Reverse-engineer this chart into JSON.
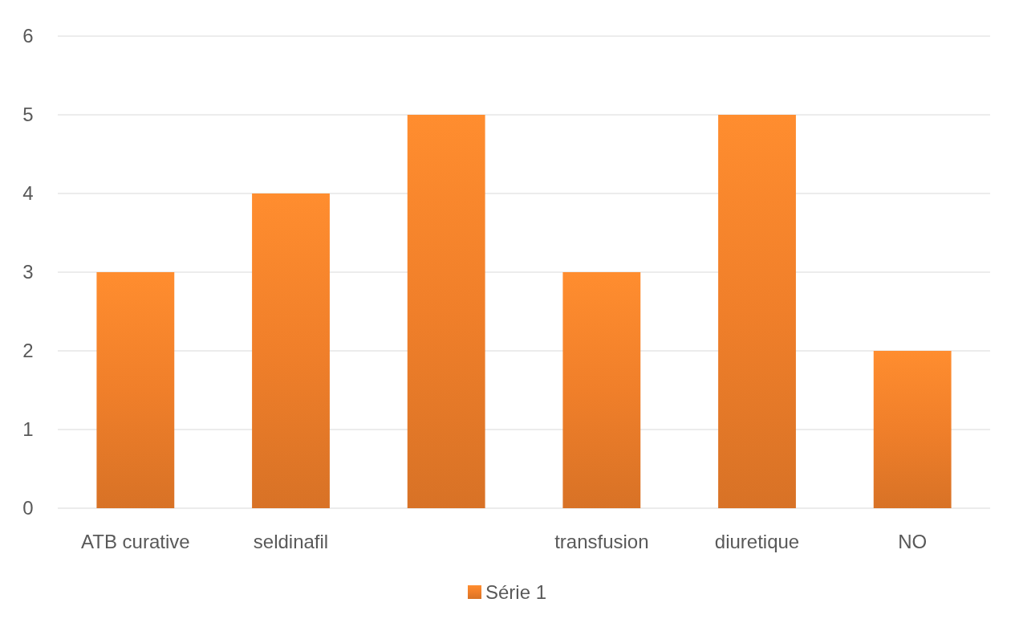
{
  "chart_data": {
    "type": "bar",
    "categories": [
      "ATB curative",
      "seldinafil",
      null,
      "transfusion",
      "diuretique",
      "NO"
    ],
    "series": [
      {
        "name": "Série 1",
        "color": "#f07f2a",
        "values": [
          3,
          4,
          5,
          3,
          5,
          2
        ]
      }
    ],
    "ylim": [
      0,
      6
    ],
    "yticks": [
      0,
      1,
      2,
      3,
      4,
      5,
      6
    ],
    "grid": "y",
    "legend": "bottom"
  }
}
